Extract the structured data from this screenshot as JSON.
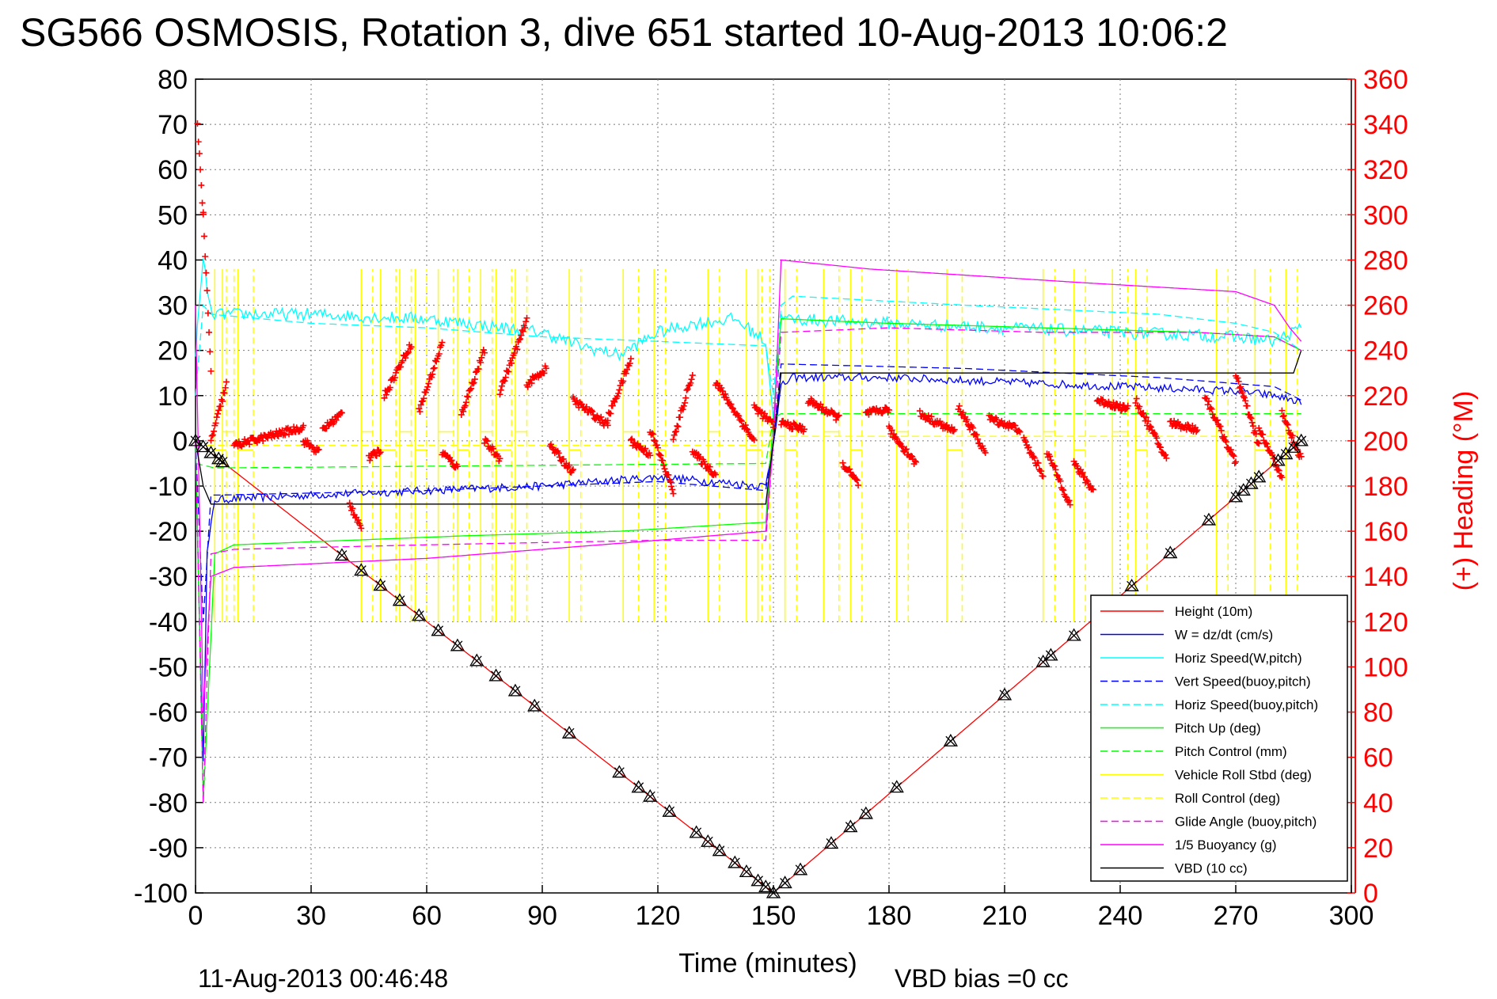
{
  "title": "SG566 OSMOSIS, Rotation 3, dive 651 started 10-Aug-2013 10:06:2",
  "footer": {
    "timestamp": "11-Aug-2013 00:46:48",
    "xlabel": "Time (minutes)",
    "vbd_bias": "VBD bias =0 cc"
  },
  "colors": {
    "red": "#ff0000",
    "blue": "#0000ff",
    "cyan": "#00ffff",
    "green": "#00ff00",
    "yellow": "#ffff00",
    "magenta": "#ff00ff",
    "black": "#000000"
  },
  "chart_data": {
    "type": "line",
    "title": "SG566 OSMOSIS, Rotation 3, dive 651 started 10-Aug-2013 10:06:2",
    "xlabel": "Time (minutes)",
    "ylabel": "",
    "y2label": "(+) Heading (°M)",
    "xlim": [
      0,
      300
    ],
    "ylim": [
      -100,
      80
    ],
    "y2lim": [
      0,
      360
    ],
    "grid": true,
    "legend_position": "bottom-right",
    "x_ticks": [
      "0",
      "30",
      "60",
      "90",
      "120",
      "150",
      "180",
      "210",
      "240",
      "270",
      "300"
    ],
    "y_ticks": [
      "80",
      "70",
      "60",
      "50",
      "40",
      "30",
      "20",
      "10",
      "0",
      "-10",
      "-20",
      "-30",
      "-40",
      "-50",
      "-60",
      "-70",
      "-80",
      "-90",
      "-100"
    ],
    "y2_ticks": [
      "360",
      "340",
      "320",
      "300",
      "280",
      "260",
      "240",
      "220",
      "200",
      "180",
      "160",
      "140",
      "120",
      "100",
      "80",
      "60",
      "40",
      "20",
      "0"
    ],
    "legend": [
      {
        "label": "Height (10m)",
        "color": "#ff0000",
        "dash": false
      },
      {
        "label": "W = dz/dt (cm/s)",
        "color": "#0000ff",
        "dash": false
      },
      {
        "label": "Horiz Speed(W,pitch)",
        "color": "#00ffff",
        "dash": false
      },
      {
        "label": "Vert Speed(buoy,pitch)",
        "color": "#0000ff",
        "dash": true
      },
      {
        "label": "Horiz Speed(buoy,pitch)",
        "color": "#00ffff",
        "dash": true
      },
      {
        "label": "Pitch Up (deg)",
        "color": "#00ff00",
        "dash": false
      },
      {
        "label": "Pitch Control (mm)",
        "color": "#00ff00",
        "dash": true
      },
      {
        "label": "Vehicle Roll Stbd (deg)",
        "color": "#ffff00",
        "dash": false
      },
      {
        "label": "Roll Control (deg)",
        "color": "#ffff00",
        "dash": true
      },
      {
        "label": "Glide Angle (buoy,pitch)",
        "color": "#ff00ff",
        "dash": true
      },
      {
        "label": "1/5 Buoyancy (g)",
        "color": "#ff00ff",
        "dash": false
      },
      {
        "label": "VBD (10 cc)",
        "color": "#000000",
        "dash": false
      }
    ],
    "series": [
      {
        "name": "Height (10m)",
        "color": "#ff0000",
        "dash": false,
        "x": [
          0,
          150,
          287
        ],
        "y": [
          0,
          -100,
          0
        ]
      },
      {
        "name": "W = dz/dt (cm/s)",
        "color": "#0000ff",
        "dash": false,
        "noise": 0.9,
        "x": [
          0,
          1,
          2,
          3,
          5,
          30,
          60,
          90,
          120,
          148,
          150,
          152,
          155,
          180,
          210,
          240,
          270,
          280,
          285,
          287
        ],
        "y": [
          0,
          -40,
          -70,
          -25,
          -13,
          -12,
          -11,
          -10,
          -8,
          -10,
          0,
          12,
          14,
          14,
          13,
          12,
          11,
          10,
          9,
          8
        ]
      },
      {
        "name": "Horiz Speed(W,pitch)",
        "color": "#00ffff",
        "dash": false,
        "noise": 1.4,
        "x": [
          0,
          2,
          4,
          30,
          60,
          90,
          100,
          110,
          120,
          130,
          140,
          148,
          150,
          152,
          180,
          210,
          240,
          270,
          280,
          287
        ],
        "y": [
          20,
          40,
          28,
          28,
          27,
          24,
          21,
          19,
          24,
          26,
          27,
          22,
          5,
          27,
          26,
          25,
          24,
          23,
          22,
          25
        ]
      },
      {
        "name": "Vert Speed(buoy,pitch)",
        "color": "#0000ff",
        "dash": true,
        "x": [
          0,
          2,
          4,
          6,
          60,
          120,
          148,
          150,
          152,
          200,
          250,
          280,
          287
        ],
        "y": [
          0,
          -40,
          -12,
          -12,
          -11,
          -9,
          -11,
          0,
          17,
          16,
          14,
          12,
          9
        ]
      },
      {
        "name": "Horiz Speed(buoy,pitch)",
        "color": "#00ffff",
        "dash": true,
        "x": [
          0,
          2,
          4,
          30,
          60,
          90,
          120,
          148,
          150,
          152,
          155,
          200,
          250,
          270,
          280,
          287
        ],
        "y": [
          10,
          30,
          28,
          26,
          25,
          23,
          22,
          21,
          10,
          30,
          32,
          30,
          28,
          26,
          24,
          20
        ]
      },
      {
        "name": "Pitch Up (deg)",
        "color": "#00ff00",
        "dash": false,
        "x": [
          0,
          2,
          5,
          10,
          40,
          70,
          110,
          148,
          150,
          152,
          180,
          220,
          260,
          280,
          287
        ],
        "y": [
          0,
          -80,
          -25,
          -23,
          -22,
          -21,
          -20,
          -18,
          5,
          27,
          26,
          25,
          24,
          23,
          20
        ]
      },
      {
        "name": "Pitch Control (mm)",
        "color": "#00ff00",
        "dash": true,
        "x": [
          0,
          5,
          148,
          150,
          152,
          287
        ],
        "y": [
          -5,
          -6,
          -5,
          5,
          6,
          6
        ]
      },
      {
        "name": "Roll Control (deg)",
        "color": "#ffff00",
        "dash": true,
        "x": [
          0,
          148,
          150,
          287
        ],
        "y": [
          -1,
          -1,
          1,
          1
        ]
      },
      {
        "name": "Glide Angle (buoy,pitch)",
        "color": "#ff00ff",
        "dash": true,
        "x": [
          0,
          2,
          4,
          10,
          60,
          120,
          148,
          150,
          152,
          180,
          220,
          260,
          280,
          287
        ],
        "y": [
          0,
          -80,
          -25,
          -24,
          -23,
          -22,
          -22,
          0,
          24,
          25,
          24,
          24,
          23,
          20
        ]
      },
      {
        "name": "1/5 Buoyancy (g)",
        "color": "#ff00ff",
        "dash": false,
        "x": [
          0,
          2,
          4,
          10,
          60,
          120,
          148,
          150,
          152,
          175,
          230,
          270,
          280,
          284,
          287
        ],
        "y": [
          30,
          -60,
          -30,
          -28,
          -26,
          -22,
          -20,
          0,
          40,
          38,
          35,
          33,
          30,
          25,
          22
        ]
      },
      {
        "name": "VBD (10 cc)",
        "color": "#000000",
        "dash": false,
        "x": [
          0,
          2,
          4,
          148,
          150,
          152,
          285,
          287
        ],
        "y": [
          0,
          -10,
          -14,
          -14,
          0,
          15,
          15,
          20
        ]
      }
    ],
    "roll_spikes": [
      {
        "t": 5,
        "len": 3,
        "pos": true
      },
      {
        "t": 7,
        "len": 3,
        "pos": false
      },
      {
        "t": 11,
        "len": 4,
        "pos": true
      },
      {
        "t": 43,
        "len": 3,
        "pos": false
      },
      {
        "t": 48,
        "len": 4,
        "pos": true
      },
      {
        "t": 53,
        "len": 3,
        "pos": false
      },
      {
        "t": 57,
        "len": 3,
        "pos": true
      },
      {
        "t": 63,
        "len": 4,
        "pos": false
      },
      {
        "t": 68,
        "len": 3,
        "pos": true
      },
      {
        "t": 74,
        "len": 3,
        "pos": false
      },
      {
        "t": 78,
        "len": 4,
        "pos": true
      },
      {
        "t": 83,
        "len": 3,
        "pos": false
      },
      {
        "t": 97,
        "len": 3,
        "pos": true
      },
      {
        "t": 111,
        "len": 4,
        "pos": false
      },
      {
        "t": 119,
        "len": 3,
        "pos": true
      },
      {
        "t": 133,
        "len": 3,
        "pos": false
      },
      {
        "t": 143,
        "len": 4,
        "pos": true
      },
      {
        "t": 146,
        "len": 3,
        "pos": false
      },
      {
        "t": 153,
        "len": 3,
        "pos": true
      },
      {
        "t": 163,
        "len": 4,
        "pos": false
      },
      {
        "t": 170,
        "len": 3,
        "pos": true
      },
      {
        "t": 182,
        "len": 3,
        "pos": false
      },
      {
        "t": 195,
        "len": 4,
        "pos": true
      },
      {
        "t": 220,
        "len": 3,
        "pos": false
      },
      {
        "t": 228,
        "len": 3,
        "pos": true
      },
      {
        "t": 238,
        "len": 4,
        "pos": false
      },
      {
        "t": 244,
        "len": 3,
        "pos": true
      },
      {
        "t": 265,
        "len": 3,
        "pos": false
      },
      {
        "t": 275,
        "len": 4,
        "pos": true
      },
      {
        "t": 283,
        "len": 3,
        "pos": false
      }
    ],
    "heading_segments": [
      {
        "t0": 0.5,
        "t1": 2,
        "h0": 340,
        "h1": 300
      },
      {
        "t0": 2,
        "t1": 4,
        "h0": 300,
        "h1": 230
      },
      {
        "t0": 4,
        "t1": 8,
        "h0": 200,
        "h1": 225
      },
      {
        "t0": 10,
        "t1": 28,
        "h0": 198,
        "h1": 206
      },
      {
        "t0": 28,
        "t1": 32,
        "h0": 200,
        "h1": 195
      },
      {
        "t0": 33,
        "t1": 38,
        "h0": 205,
        "h1": 212
      },
      {
        "t0": 40,
        "t1": 43,
        "h0": 172,
        "h1": 162
      },
      {
        "t0": 45,
        "t1": 48,
        "h0": 192,
        "h1": 196
      },
      {
        "t0": 49,
        "t1": 56,
        "h0": 220,
        "h1": 243
      },
      {
        "t0": 58,
        "t1": 64,
        "h0": 213,
        "h1": 243
      },
      {
        "t0": 64,
        "t1": 68,
        "h0": 195,
        "h1": 188
      },
      {
        "t0": 69,
        "t1": 75,
        "h0": 212,
        "h1": 240
      },
      {
        "t0": 75,
        "t1": 79,
        "h0": 200,
        "h1": 192
      },
      {
        "t0": 79,
        "t1": 86,
        "h0": 222,
        "h1": 253
      },
      {
        "t0": 86,
        "t1": 91,
        "h0": 225,
        "h1": 232
      },
      {
        "t0": 92,
        "t1": 98,
        "h0": 198,
        "h1": 186
      },
      {
        "t0": 98,
        "t1": 107,
        "h0": 218,
        "h1": 207
      },
      {
        "t0": 107,
        "t1": 113,
        "h0": 210,
        "h1": 236
      },
      {
        "t0": 113,
        "t1": 118,
        "h0": 200,
        "h1": 194
      },
      {
        "t0": 118,
        "t1": 124,
        "h0": 205,
        "h1": 178
      },
      {
        "t0": 124,
        "t1": 129,
        "h0": 200,
        "h1": 230
      },
      {
        "t0": 129,
        "t1": 135,
        "h0": 195,
        "h1": 185
      },
      {
        "t0": 135,
        "t1": 145,
        "h0": 226,
        "h1": 200
      },
      {
        "t0": 145,
        "t1": 150,
        "h0": 215,
        "h1": 207
      },
      {
        "t0": 152,
        "t1": 158,
        "h0": 208,
        "h1": 205
      },
      {
        "t0": 159,
        "t1": 167,
        "h0": 218,
        "h1": 210
      },
      {
        "t0": 168,
        "t1": 172,
        "h0": 190,
        "h1": 181
      },
      {
        "t0": 174,
        "t1": 180,
        "h0": 212,
        "h1": 214
      },
      {
        "t0": 180,
        "t1": 187,
        "h0": 205,
        "h1": 190
      },
      {
        "t0": 188,
        "t1": 197,
        "h0": 212,
        "h1": 204
      },
      {
        "t0": 198,
        "t1": 205,
        "h0": 215,
        "h1": 195
      },
      {
        "t0": 206,
        "t1": 214,
        "h0": 210,
        "h1": 205
      },
      {
        "t0": 215,
        "t1": 220,
        "h0": 200,
        "h1": 185
      },
      {
        "t0": 221,
        "t1": 227,
        "h0": 195,
        "h1": 172
      },
      {
        "t0": 228,
        "t1": 233,
        "h0": 190,
        "h1": 178
      },
      {
        "t0": 234,
        "t1": 242,
        "h0": 218,
        "h1": 214
      },
      {
        "t0": 244,
        "t1": 252,
        "h0": 218,
        "h1": 192
      },
      {
        "t0": 253,
        "t1": 260,
        "h0": 208,
        "h1": 205
      },
      {
        "t0": 262,
        "t1": 270,
        "h0": 220,
        "h1": 190
      },
      {
        "t0": 270,
        "t1": 276,
        "h0": 230,
        "h1": 198
      },
      {
        "t0": 276,
        "t1": 282,
        "h0": 205,
        "h1": 184
      },
      {
        "t0": 282,
        "t1": 287,
        "h0": 212,
        "h1": 192
      }
    ],
    "vbd_markers_t": [
      0,
      2,
      4,
      6,
      7,
      38,
      43,
      48,
      53,
      58,
      63,
      68,
      73,
      78,
      83,
      88,
      97,
      110,
      115,
      118,
      123,
      130,
      133,
      136,
      140,
      143,
      146,
      148,
      150,
      153,
      157,
      165,
      170,
      174,
      182,
      196,
      210,
      220,
      222,
      228,
      238,
      243,
      253,
      263,
      270,
      272,
      274,
      276,
      281,
      283,
      285,
      287
    ]
  }
}
